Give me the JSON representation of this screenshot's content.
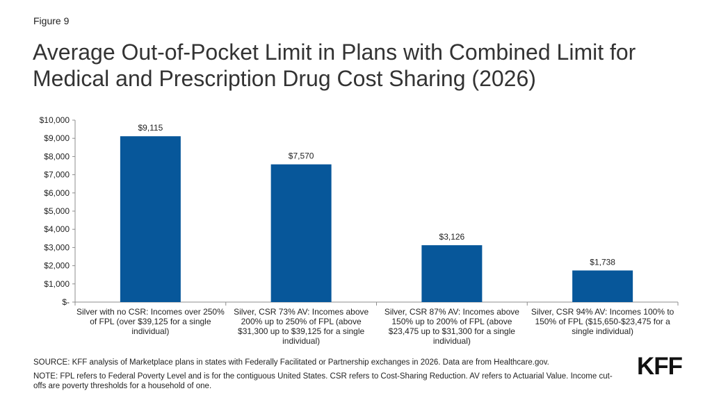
{
  "figure_label": "Figure 9",
  "title": "Average Out-of-Pocket Limit in Plans with Combined Limit for Medical and Prescription Drug Cost Sharing (2026)",
  "source": "SOURCE: KFF analysis of Marketplace plans in states with Federally Facilitated or Partnership exchanges in 2026. Data are from Healthcare.gov.",
  "note": "NOTE: FPL refers to Federal Poverty Level and is for the contiguous United States. CSR refers to Cost-Sharing Reduction. AV refers to Actuarial Value. Income cut-offs are poverty thresholds for a household of one.",
  "logo": "KFF",
  "colors": {
    "bar": "#07579A",
    "axis": "#8c8c8c"
  },
  "chart_data": {
    "type": "bar",
    "title": "Average Out-of-Pocket Limit in Plans with Combined Limit for Medical and Prescription Drug Cost Sharing (2026)",
    "xlabel": "",
    "ylabel": "",
    "ylim": [
      0,
      10000
    ],
    "grid": false,
    "categories": [
      "Silver with no CSR: Incomes over 250% of FPL (over $39,125 for a single individual)",
      "Silver, CSR 73% AV: Incomes above 200% up to 250% of FPL (above $31,300 up to $39,125 for a single individual)",
      "Silver, CSR 87% AV: Incomes above 150% up to 200% of FPL (above $23,475 up to $31,300 for a single individual)",
      "Silver, CSR 94% AV: Incomes 100% to 150% of FPL ($15,650-$23,475 for a single individual)"
    ],
    "values": [
      9115,
      7570,
      3126,
      1738
    ],
    "data_labels": [
      "$9,115",
      "$7,570",
      "$3,126",
      "$1,738"
    ],
    "yticks": [
      0,
      1000,
      2000,
      3000,
      4000,
      5000,
      6000,
      7000,
      8000,
      9000,
      10000
    ],
    "ytick_labels": [
      "$-",
      "$1,000",
      "$2,000",
      "$3,000",
      "$4,000",
      "$5,000",
      "$6,000",
      "$7,000",
      "$8,000",
      "$9,000",
      "$10,000"
    ]
  }
}
